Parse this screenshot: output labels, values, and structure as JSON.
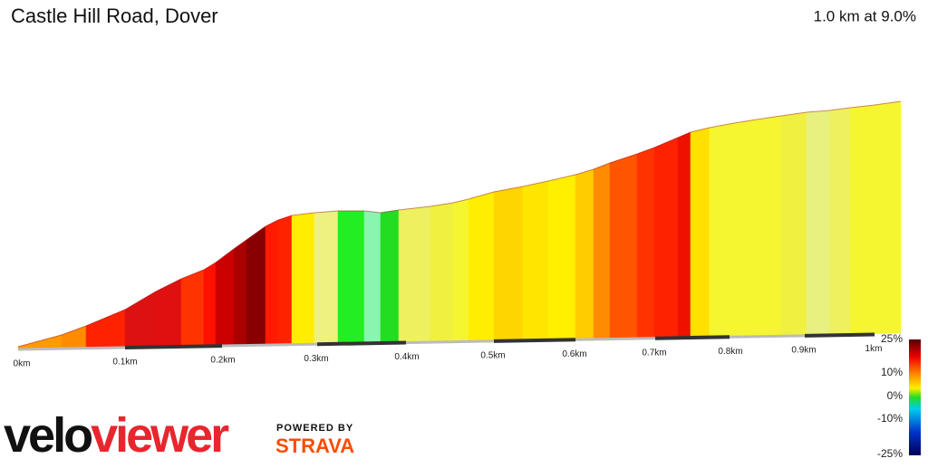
{
  "header": {
    "title": "Castle Hill Road, Dover",
    "summary": "1.0 km at 9.0%"
  },
  "distance_labels": [
    "0km",
    "0.1km",
    "0.2km",
    "0.3km",
    "0.4km",
    "0.5km",
    "0.6km",
    "0.7km",
    "0.8km",
    "0.9km",
    "1km"
  ],
  "gradient_legend": [
    "25%",
    "10%",
    "0%",
    "-10%",
    "-25%"
  ],
  "logo": {
    "velo": "velo",
    "viewer": "viewer",
    "powered_by": "POWERED BY",
    "strava": "STRAVA"
  }
}
